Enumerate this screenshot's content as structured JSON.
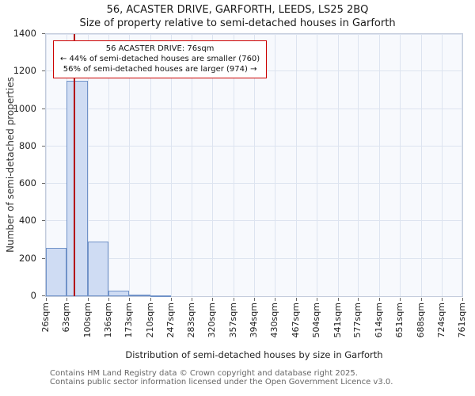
{
  "title": "56, ACASTER DRIVE, GARFORTH, LEEDS, LS25 2BQ",
  "subtitle": "Size of property relative to semi-detached houses in Garforth",
  "annotation": {
    "line1": "56 ACASTER DRIVE: 76sqm",
    "line2": "← 44% of semi-detached houses are smaller (760)",
    "line3": "56% of semi-detached houses are larger (974) →"
  },
  "footer": {
    "line1": "Contains HM Land Registry data © Crown copyright and database right 2025.",
    "line2": "Contains public sector information licensed under the Open Government Licence v3.0."
  },
  "chart_data": {
    "type": "bar",
    "title": "56, ACASTER DRIVE, GARFORTH, LEEDS, LS25 2BQ",
    "subtitle": "Size of property relative to semi-detached houses in Garforth",
    "xlabel": "Distribution of semi-detached houses by size in Garforth",
    "ylabel": "Number of semi-detached properties",
    "categories": [
      "26sqm",
      "63sqm",
      "100sqm",
      "136sqm",
      "173sqm",
      "210sqm",
      "247sqm",
      "283sqm",
      "320sqm",
      "357sqm",
      "394sqm",
      "430sqm",
      "467sqm",
      "504sqm",
      "541sqm",
      "577sqm",
      "614sqm",
      "651sqm",
      "688sqm",
      "724sqm",
      "761sqm"
    ],
    "bin_edges": [
      26,
      63,
      100,
      136,
      173,
      210,
      247,
      283,
      320,
      357,
      394,
      430,
      467,
      504,
      541,
      577,
      614,
      651,
      688,
      724,
      761
    ],
    "values": [
      260,
      1150,
      290,
      30,
      10,
      5,
      0,
      0,
      0,
      0,
      0,
      0,
      0,
      0,
      0,
      0,
      0,
      0,
      0,
      0
    ],
    "ylim": [
      0,
      1400
    ],
    "yticks": [
      0,
      200,
      400,
      600,
      800,
      1000,
      1200,
      1400
    ],
    "grid": true,
    "marker": {
      "x": 76,
      "label": "56 ACASTER DRIVE: 76sqm",
      "smaller_count": 760,
      "smaller_pct": 44,
      "larger_count": 974,
      "larger_pct": 56
    },
    "colors": {
      "bar_fill": "#cfdcf3",
      "bar_border": "#7092c8",
      "marker_line": "#b30000",
      "annotation_border": "#cc0000",
      "grid": "#dde4f0",
      "plot_bg": "#f7f9fd"
    }
  }
}
